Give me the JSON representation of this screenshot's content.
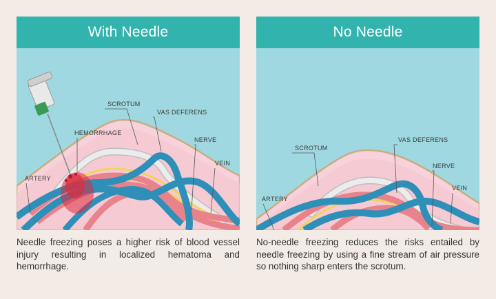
{
  "panels": {
    "left": {
      "title": "With Needle",
      "labels": {
        "scrotum": "SCROTUM",
        "vas_deferens": "VAS DEFERENS",
        "hemorrhage": "HEMORRHAGE",
        "nerve": "NERVE",
        "artery": "ARTERY",
        "vein": "VEIN"
      },
      "caption": "Needle freezing poses a higher risk of blood vessel injury resulting in localized hematoma and hemorrhage."
    },
    "right": {
      "title": "No Needle",
      "labels": {
        "scrotum": "SCROTUM",
        "vas_deferens": "VAS DEFERENS",
        "nerve": "NERVE",
        "artery": "ARTERY",
        "vein": "VEIN"
      },
      "caption": "No-needle freezing reduces the risks entailed by needle freezing by using a fine stream of air pressure so nothing sharp enters the scrotum."
    }
  },
  "colors": {
    "header": "#33b3ad",
    "sky": "#9fd8e0",
    "skin": "#f7d2da",
    "skin_edge": "#c9ad82",
    "artery": "#e8838b",
    "vein": "#2e8fb8",
    "nerve": "#f3d35a",
    "vas_deferens": "#dcdcdc",
    "hemorrhage": "#d92d42"
  }
}
